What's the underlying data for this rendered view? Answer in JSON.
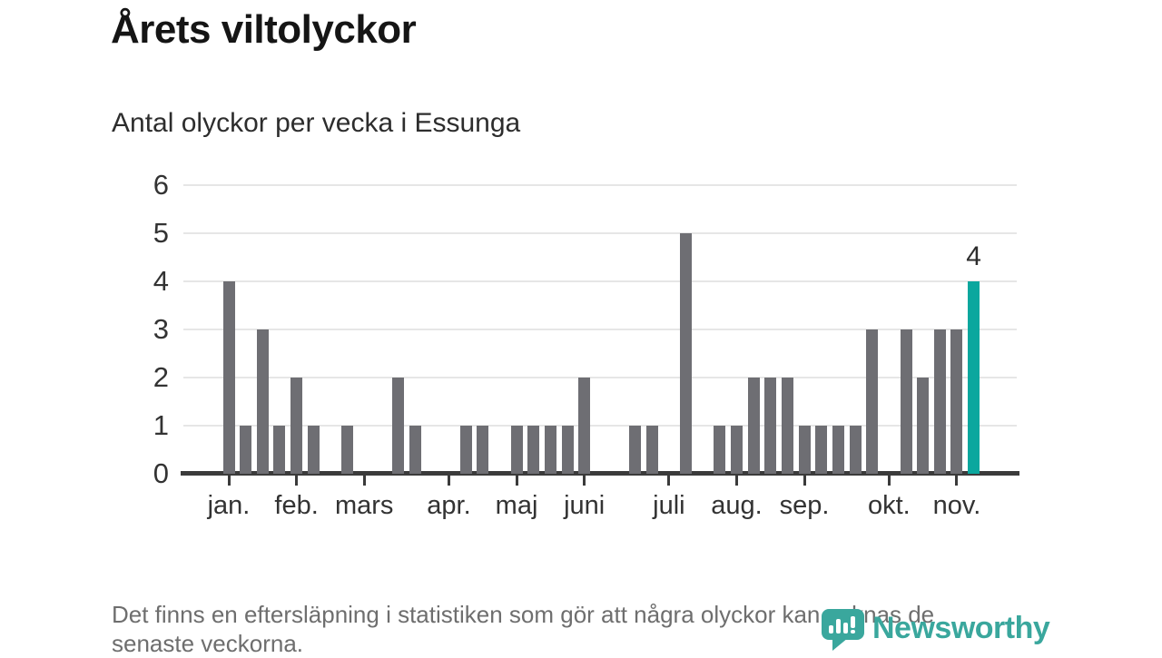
{
  "chart_data": {
    "type": "bar",
    "title": "Årets viltolyckor",
    "subtitle": "Antal olyckor per vecka i Essunga",
    "x_unit": "vecka",
    "values": [
      4,
      1,
      3,
      1,
      2,
      1,
      0,
      1,
      0,
      0,
      2,
      1,
      0,
      0,
      1,
      1,
      0,
      1,
      1,
      1,
      1,
      2,
      0,
      0,
      1,
      1,
      0,
      5,
      0,
      1,
      1,
      2,
      2,
      2,
      1,
      1,
      1,
      1,
      3,
      0,
      3,
      2,
      3,
      3,
      4
    ],
    "highlight_index": 44,
    "highlight_label": "4",
    "ylim": [
      0,
      6
    ],
    "yticks": [
      0,
      1,
      2,
      3,
      4,
      5,
      6
    ],
    "xticks": [
      {
        "label": "jan.",
        "week": 1
      },
      {
        "label": "feb.",
        "week": 5
      },
      {
        "label": "mars",
        "week": 9
      },
      {
        "label": "apr.",
        "week": 14
      },
      {
        "label": "maj",
        "week": 18
      },
      {
        "label": "juni",
        "week": 22
      },
      {
        "label": "juli",
        "week": 27
      },
      {
        "label": "aug.",
        "week": 31
      },
      {
        "label": "sep.",
        "week": 35
      },
      {
        "label": "okt.",
        "week": 40
      },
      {
        "label": "nov.",
        "week": 44
      }
    ],
    "grid": true,
    "legend": "none",
    "bar_color": "#6e6e73",
    "highlight_color": "#0ba79e",
    "axis_color": "#3b3b3b",
    "gridline_color": "#e6e6e6"
  },
  "footer": {
    "note_lines": [
      "Det finns en eftersläpning i statistiken som gör att några olyckor kan saknas de",
      "senaste veckorna."
    ],
    "logo_text": "Newsworthy",
    "brand_color": "#3aa79d"
  }
}
